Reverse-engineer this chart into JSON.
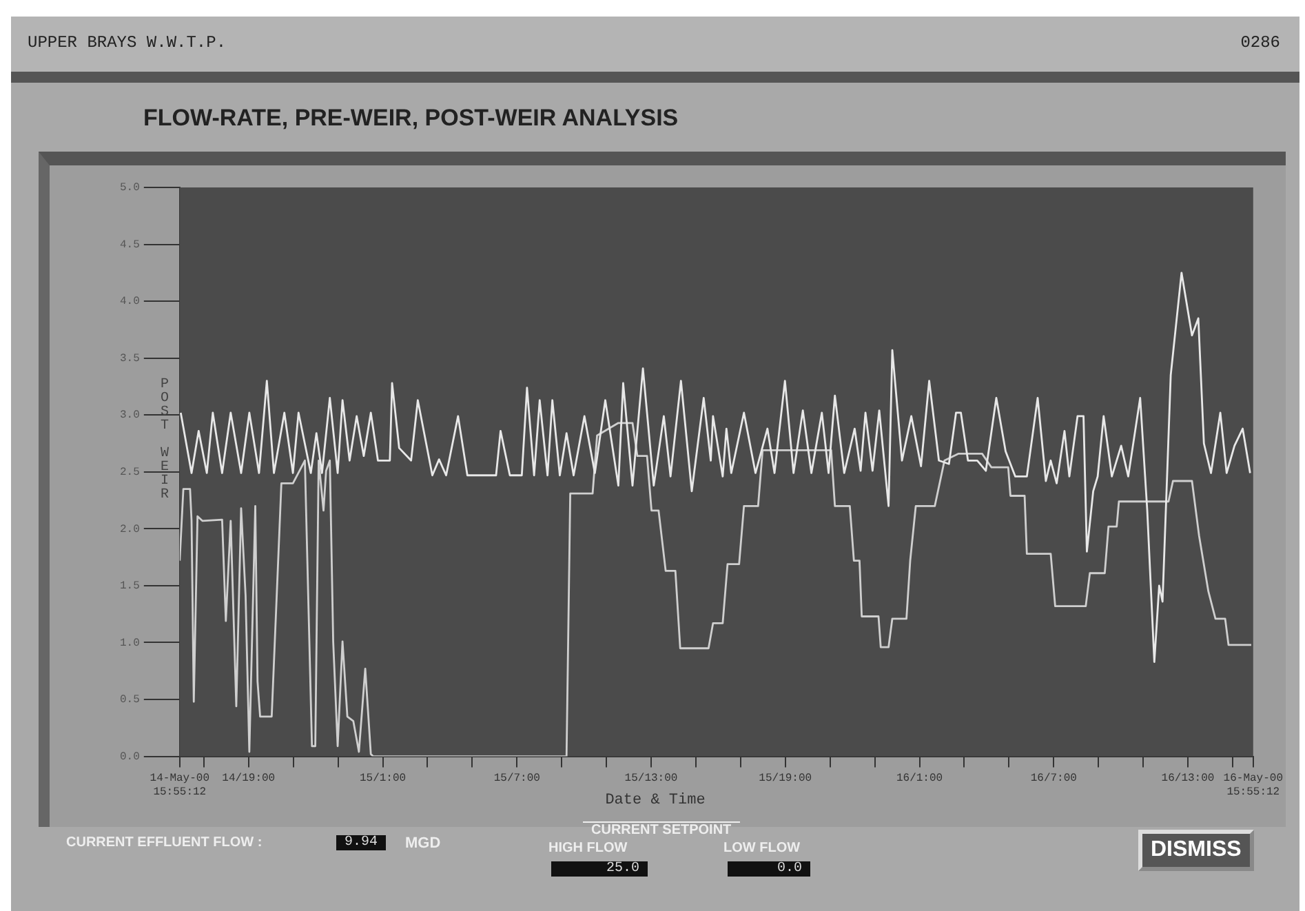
{
  "chart_data": {
    "type": "line",
    "title": "FLOW-RATE, PRE-WEIR, POST-WEIR ANALYSIS",
    "xlabel": "Date & Time",
    "ylabel": "POST WEIR",
    "annotations": [
      "UPPER BRAYS W.W.T.P.",
      "0286",
      "CURRENT EFFLUENT FLOW :",
      "9.94",
      "MGD",
      "CURRENT SETPOINT",
      "HIGH FLOW",
      "25.0",
      "LOW FLOW",
      "0.0",
      "DISMISS"
    ],
    "xlim": [
      "2000-05-14T15:55:12",
      "2000-05-16T15:55:12"
    ],
    "xticks": [
      {
        "value": "2000-05-14T15:55:12",
        "label": "14-May-00 15:55:12"
      },
      {
        "value": "2000-05-14T17:00",
        "label": null
      },
      {
        "value": "2000-05-14T19:00",
        "label": "14/19:00"
      },
      {
        "value": "2000-05-14T21:00",
        "label": null
      },
      {
        "value": "2000-05-14T23:00",
        "label": null
      },
      {
        "value": "2000-05-15T01:00",
        "label": "15/1:00"
      },
      {
        "value": "2000-05-15T03:00",
        "label": null
      },
      {
        "value": "2000-05-15T05:00",
        "label": null
      },
      {
        "value": "2000-05-15T07:00",
        "label": "15/7:00"
      },
      {
        "value": "2000-05-15T09:00",
        "label": null
      },
      {
        "value": "2000-05-15T11:00",
        "label": null
      },
      {
        "value": "2000-05-15T13:00",
        "label": "15/13:00"
      },
      {
        "value": "2000-05-15T15:00",
        "label": null
      },
      {
        "value": "2000-05-15T17:00",
        "label": null
      },
      {
        "value": "2000-05-15T19:00",
        "label": "15/19:00"
      },
      {
        "value": "2000-05-15T21:00",
        "label": null
      },
      {
        "value": "2000-05-15T23:00",
        "label": null
      },
      {
        "value": "2000-05-16T01:00",
        "label": "16/1:00"
      },
      {
        "value": "2000-05-16T03:00",
        "label": null
      },
      {
        "value": "2000-05-16T05:00",
        "label": null
      },
      {
        "value": "2000-05-16T07:00",
        "label": "16/7:00"
      },
      {
        "value": "2000-05-16T09:00",
        "label": null
      },
      {
        "value": "2000-05-16T11:00",
        "label": null
      },
      {
        "value": "2000-05-16T13:00",
        "label": "16/13:00"
      },
      {
        "value": "2000-05-16T15:00",
        "label": null
      },
      {
        "value": "2000-05-16T15:55:12",
        "label": "16-May-00 15:55:12"
      }
    ],
    "ylim": [
      0,
      5
    ],
    "yticks": [
      {
        "value": 0,
        "label": "0.0"
      },
      {
        "value": 0.5,
        "label": "0.5"
      },
      {
        "value": 1,
        "label": "1.0"
      },
      {
        "value": 1.5,
        "label": "1.5"
      },
      {
        "value": 2,
        "label": "2.0"
      },
      {
        "value": 2.5,
        "label": "2.5"
      },
      {
        "value": 3,
        "label": "3.0"
      },
      {
        "value": 3.5,
        "label": "3.5"
      },
      {
        "value": 4,
        "label": "4.0"
      },
      {
        "value": 4.5,
        "label": "4.5"
      },
      {
        "value": 5,
        "label": "5.0"
      }
    ],
    "grid": false,
    "legend": false,
    "marker": "none",
    "line_style": "solid",
    "series": [
      {
        "color": "#e8e8e8",
        "x": [
          "2000-05-14T15:58",
          "2000-05-14T16:27",
          "2000-05-14T16:46",
          "2000-05-14T17:08",
          "2000-05-14T17:24",
          "2000-05-14T17:49",
          "2000-05-14T18:12",
          "2000-05-14T18:40",
          "2000-05-14T19:02",
          "2000-05-14T19:28",
          "2000-05-14T19:49",
          "2000-05-14T20:08",
          "2000-05-14T20:36",
          "2000-05-14T20:59",
          "2000-05-14T21:14",
          "2000-05-14T21:47",
          "2000-05-14T22:02",
          "2000-05-14T22:17",
          "2000-05-14T22:38",
          "2000-05-14T22:59",
          "2000-05-14T23:12",
          "2000-05-14T23:31",
          "2000-05-14T23:50",
          "2000-05-15T00:09",
          "2000-05-15T00:28",
          "2000-05-15T00:47",
          "2000-05-15T01:19",
          "2000-05-15T01:25",
          "2000-05-15T01:44",
          "2000-05-15T02:16",
          "2000-05-15T02:34",
          "2000-05-15T03:13",
          "2000-05-15T03:31",
          "2000-05-15T03:50",
          "2000-05-15T04:22",
          "2000-05-15T04:47",
          "2000-05-15T06:04",
          "2000-05-15T06:16",
          "2000-05-15T06:41",
          "2000-05-15T07:13",
          "2000-05-15T07:27",
          "2000-05-15T07:46",
          "2000-05-15T08:01",
          "2000-05-15T08:22",
          "2000-05-15T08:35",
          "2000-05-15T08:55",
          "2000-05-15T09:13",
          "2000-05-15T09:32",
          "2000-05-15T10:01",
          "2000-05-15T10:29",
          "2000-05-15T10:57",
          "2000-05-15T11:32",
          "2000-05-15T11:45",
          "2000-05-15T12:10",
          "2000-05-15T12:38",
          "2000-05-15T13:07",
          "2000-05-15T13:34",
          "2000-05-15T13:52",
          "2000-05-15T14:20",
          "2000-05-15T14:49",
          "2000-05-15T15:21",
          "2000-05-15T15:40",
          "2000-05-15T15:46",
          "2000-05-15T16:12",
          "2000-05-15T16:22",
          "2000-05-15T16:35",
          "2000-05-15T17:09",
          "2000-05-15T17:40",
          "2000-05-15T18:12",
          "2000-05-15T18:31",
          "2000-05-15T18:59",
          "2000-05-15T19:22",
          "2000-05-15T19:47",
          "2000-05-15T20:10",
          "2000-05-15T20:38",
          "2000-05-15T20:56",
          "2000-05-15T21:13",
          "2000-05-15T21:38",
          "2000-05-15T22:06",
          "2000-05-15T22:22",
          "2000-05-15T22:35",
          "2000-05-15T22:54",
          "2000-05-15T23:12",
          "2000-05-15T23:37",
          "2000-05-15T23:47",
          "2000-05-16T00:13",
          "2000-05-16T00:38",
          "2000-05-16T01:04",
          "2000-05-16T01:26",
          "2000-05-16T01:52",
          "2000-05-16T02:19",
          "2000-05-16T02:38",
          "2000-05-16T02:51",
          "2000-05-16T03:10",
          "2000-05-16T03:35",
          "2000-05-16T03:58",
          "2000-05-16T04:26",
          "2000-05-16T04:51",
          "2000-05-16T05:17",
          "2000-05-16T05:48",
          "2000-05-16T06:17",
          "2000-05-16T06:39",
          "2000-05-16T06:52",
          "2000-05-16T07:08",
          "2000-05-16T07:29",
          "2000-05-16T07:42",
          "2000-05-16T08:04",
          "2000-05-16T08:20",
          "2000-05-16T08:29",
          "2000-05-16T08:46",
          "2000-05-16T08:58",
          "2000-05-16T09:14",
          "2000-05-16T09:36",
          "2000-05-16T10:01",
          "2000-05-16T10:20",
          "2000-05-16T10:52",
          "2000-05-16T11:11",
          "2000-05-16T11:30",
          "2000-05-16T11:43",
          "2000-05-16T11:52",
          "2000-05-16T12:14",
          "2000-05-16T12:43",
          "2000-05-16T13:11",
          "2000-05-16T13:28",
          "2000-05-16T13:43",
          "2000-05-16T14:02",
          "2000-05-16T14:27",
          "2000-05-16T14:44",
          "2000-05-16T15:05",
          "2000-05-16T15:27",
          "2000-05-16T15:47"
        ],
        "values": [
          3.02,
          2.49,
          2.86,
          2.49,
          3.02,
          2.49,
          3.02,
          2.49,
          3.02,
          2.49,
          3.3,
          2.49,
          3.02,
          2.49,
          3.02,
          2.49,
          2.84,
          2.49,
          3.15,
          2.49,
          3.13,
          2.6,
          2.99,
          2.64,
          3.02,
          2.6,
          2.6,
          3.28,
          2.71,
          2.6,
          3.13,
          2.47,
          2.61,
          2.47,
          2.99,
          2.47,
          2.47,
          2.86,
          2.47,
          2.47,
          3.24,
          2.47,
          3.13,
          2.47,
          3.13,
          2.47,
          2.84,
          2.47,
          2.99,
          2.49,
          3.13,
          2.38,
          3.28,
          2.38,
          3.41,
          2.38,
          2.99,
          2.46,
          3.3,
          2.33,
          3.15,
          2.6,
          2.99,
          2.46,
          2.88,
          2.49,
          3.02,
          2.49,
          2.88,
          2.49,
          3.3,
          2.49,
          3.04,
          2.49,
          3.02,
          2.49,
          3.17,
          2.49,
          2.88,
          2.51,
          3.02,
          2.51,
          3.04,
          2.2,
          3.57,
          2.6,
          2.99,
          2.55,
          3.3,
          2.6,
          2.57,
          3.02,
          3.02,
          2.6,
          2.6,
          2.51,
          3.15,
          2.68,
          2.46,
          2.46,
          3.15,
          2.42,
          2.6,
          2.4,
          2.86,
          2.46,
          2.99,
          2.99,
          1.8,
          2.33,
          2.46,
          2.99,
          2.46,
          2.73,
          2.46,
          3.15,
          2.16,
          0.83,
          1.5,
          1.36,
          3.35,
          4.25,
          3.7,
          3.85,
          2.75,
          2.49,
          3.02,
          2.49,
          2.73,
          2.88,
          2.49
        ]
      },
      {
        "color": "#cfcfcf",
        "x": [
          "2000-05-14T15:55:12",
          "2000-05-14T16:05",
          "2000-05-14T16:23",
          "2000-05-14T16:27",
          "2000-05-14T16:33",
          "2000-05-14T16:43",
          "2000-05-14T16:56",
          "2000-05-14T17:49",
          "2000-05-14T17:59",
          "2000-05-14T18:12",
          "2000-05-14T18:27",
          "2000-05-14T18:40",
          "2000-05-14T18:52",
          "2000-05-14T19:02",
          "2000-05-14T19:18",
          "2000-05-14T19:24",
          "2000-05-14T19:31",
          "2000-05-14T20:02",
          "2000-05-14T20:28",
          "2000-05-14T20:59",
          "2000-05-14T21:31",
          "2000-05-14T21:50",
          "2000-05-14T21:59",
          "2000-05-14T22:08",
          "2000-05-14T22:21",
          "2000-05-14T22:28",
          "2000-05-14T22:38",
          "2000-05-14T22:47",
          "2000-05-14T22:59",
          "2000-05-14T23:12",
          "2000-05-14T23:25",
          "2000-05-14T23:41",
          "2000-05-14T23:56",
          "2000-05-15T00:13",
          "2000-05-15T00:28",
          "2000-05-15T00:34",
          "2000-05-15T09:13",
          "2000-05-15T09:23",
          "2000-05-15T10:23",
          "2000-05-15T10:35",
          "2000-05-15T11:32",
          "2000-05-15T12:10",
          "2000-05-15T12:23",
          "2000-05-15T12:49",
          "2000-05-15T13:01",
          "2000-05-15T13:20",
          "2000-05-15T13:39",
          "2000-05-15T14:05",
          "2000-05-15T14:18",
          "2000-05-15T15:34",
          "2000-05-15T15:46",
          "2000-05-15T16:12",
          "2000-05-15T16:25",
          "2000-05-15T16:56",
          "2000-05-15T17:09",
          "2000-05-15T17:47",
          "2000-05-15T17:59",
          "2000-05-15T21:03",
          "2000-05-15T21:13",
          "2000-05-15T21:53",
          "2000-05-15T22:04",
          "2000-05-15T22:19",
          "2000-05-15T22:25",
          "2000-05-15T23:10",
          "2000-05-15T23:16",
          "2000-05-15T23:37",
          "2000-05-15T23:47",
          "2000-05-16T00:25",
          "2000-05-16T00:35",
          "2000-05-16T00:50",
          "2000-05-16T01:41",
          "2000-05-16T02:07",
          "2000-05-16T02:44",
          "2000-05-16T03:48",
          "2000-05-16T04:13",
          "2000-05-16T04:58",
          "2000-05-16T05:04",
          "2000-05-16T05:42",
          "2000-05-16T05:48",
          "2000-05-16T06:52",
          "2000-05-16T07:04",
          "2000-05-16T08:26",
          "2000-05-16T08:37",
          "2000-05-16T09:17",
          "2000-05-16T09:27",
          "2000-05-16T09:49",
          "2000-05-16T09:55",
          "2000-05-16T12:08",
          "2000-05-16T12:20",
          "2000-05-16T13:11",
          "2000-05-16T13:30",
          "2000-05-16T13:55",
          "2000-05-16T14:14",
          "2000-05-16T14:40",
          "2000-05-16T14:49",
          "2000-05-16T15:50"
        ],
        "values": [
          1.72,
          2.35,
          2.35,
          2.07,
          0.48,
          2.11,
          2.07,
          2.08,
          1.19,
          2.07,
          0.44,
          2.18,
          1.41,
          0.04,
          2.2,
          0.66,
          0.35,
          0.35,
          2.4,
          2.4,
          2.6,
          0.09,
          0.09,
          2.6,
          2.16,
          2.51,
          2.6,
          1.01,
          0.09,
          1.01,
          0.35,
          0.31,
          0.04,
          0.77,
          0.02,
          0,
          0,
          2.31,
          2.31,
          2.82,
          2.93,
          2.93,
          2.64,
          2.64,
          2.16,
          2.16,
          1.63,
          1.63,
          0.95,
          0.95,
          1.17,
          1.17,
          1.69,
          1.69,
          2.2,
          2.2,
          2.69,
          2.69,
          2.2,
          2.2,
          1.72,
          1.72,
          1.23,
          1.23,
          0.96,
          0.96,
          1.21,
          1.21,
          1.72,
          2.2,
          2.2,
          2.6,
          2.66,
          2.66,
          2.54,
          2.54,
          2.29,
          2.29,
          1.78,
          1.78,
          1.32,
          1.32,
          1.61,
          1.61,
          2.02,
          2.02,
          2.24,
          2.24,
          2.42,
          2.42,
          1.94,
          1.45,
          1.21,
          1.21,
          0.98,
          0.98
        ]
      }
    ]
  }
}
